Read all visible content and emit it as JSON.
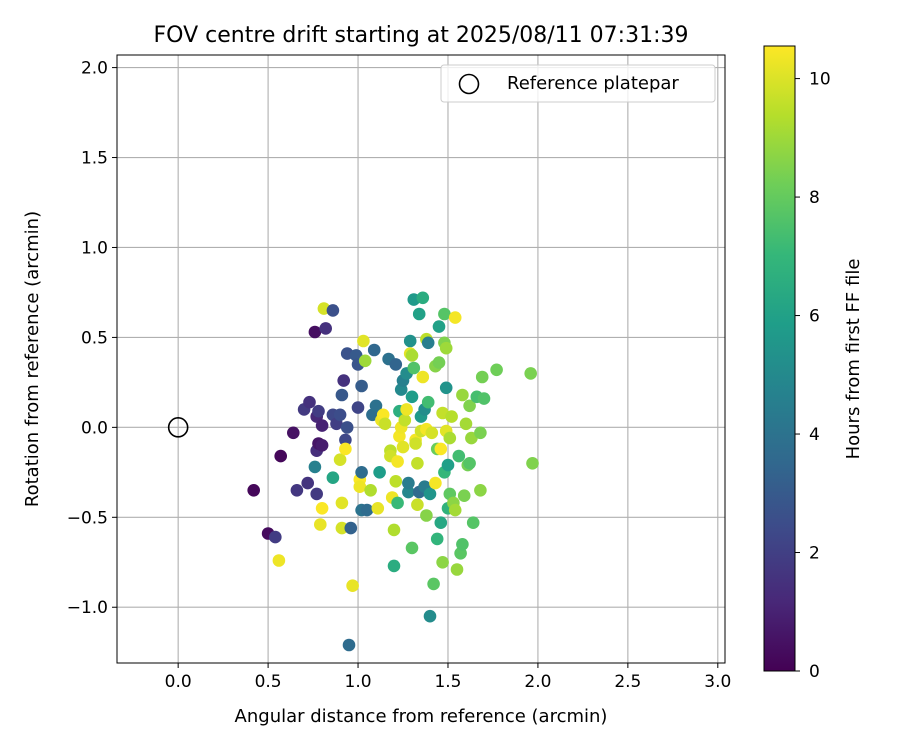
{
  "chart_data": {
    "type": "scatter",
    "title": "FOV centre drift starting at 2025/08/11 07:31:39",
    "xlabel": "Angular distance from reference (arcmin)",
    "ylabel": "Rotation from reference (arcmin)",
    "xlim": [
      -0.34,
      3.04
    ],
    "ylim": [
      -1.31,
      2.07
    ],
    "xticks": [
      0.0,
      0.5,
      1.0,
      1.5,
      2.0,
      2.5,
      3.0
    ],
    "xtick_labels": [
      "0.0",
      "0.5",
      "1.0",
      "1.5",
      "2.0",
      "2.5",
      "3.0"
    ],
    "yticks": [
      -1.0,
      -0.5,
      0.0,
      0.5,
      1.0,
      1.5,
      2.0
    ],
    "ytick_labels": [
      "−1.0",
      "−0.5",
      "0.0",
      "0.5",
      "1.0",
      "1.5",
      "2.0"
    ],
    "grid": true,
    "legend": {
      "position": "top-right",
      "entries": [
        "Reference platepar"
      ]
    },
    "reference_point": {
      "x": 0.0,
      "y": 0.0,
      "label": "Reference platepar"
    },
    "colorbar": {
      "label": "Hours from first FF file",
      "colormap": "viridis",
      "range": [
        0,
        10.55
      ],
      "ticks": [
        0,
        2,
        4,
        6,
        8,
        10
      ],
      "tick_labels": [
        "0",
        "2",
        "4",
        "6",
        "8",
        "10"
      ]
    },
    "colormap_stops": [
      "#440154",
      "#482878",
      "#3e4989",
      "#31688e",
      "#26828e",
      "#1f9e89",
      "#35b779",
      "#6ece58",
      "#b5de2b",
      "#fde725"
    ],
    "points": [
      {
        "x": 0.42,
        "y": -0.35,
        "c": 0.2
      },
      {
        "x": 0.5,
        "y": -0.59,
        "c": 0.3
      },
      {
        "x": 0.57,
        "y": -0.16,
        "c": 0.2
      },
      {
        "x": 0.54,
        "y": -0.61,
        "c": 1.9
      },
      {
        "x": 0.56,
        "y": -0.74,
        "c": 10.3
      },
      {
        "x": 0.64,
        "y": -0.03,
        "c": 0.5
      },
      {
        "x": 0.66,
        "y": -0.35,
        "c": 1.7
      },
      {
        "x": 0.7,
        "y": 0.1,
        "c": 1.8
      },
      {
        "x": 0.72,
        "y": -0.31,
        "c": 1.6
      },
      {
        "x": 0.73,
        "y": 0.14,
        "c": 1.5
      },
      {
        "x": 0.76,
        "y": 0.53,
        "c": 0.4
      },
      {
        "x": 0.77,
        "y": -0.13,
        "c": 1.4
      },
      {
        "x": 0.77,
        "y": -0.37,
        "c": 1.8
      },
      {
        "x": 0.78,
        "y": -0.09,
        "c": 0.6
      },
      {
        "x": 0.77,
        "y": 0.06,
        "c": 1.2
      },
      {
        "x": 0.78,
        "y": 0.09,
        "c": 1.9
      },
      {
        "x": 0.8,
        "y": 0.01,
        "c": 1.0
      },
      {
        "x": 0.8,
        "y": -0.1,
        "c": 0.8
      },
      {
        "x": 0.82,
        "y": 0.55,
        "c": 1.5
      },
      {
        "x": 0.81,
        "y": 0.66,
        "c": 9.9
      },
      {
        "x": 0.86,
        "y": 0.65,
        "c": 2.6
      },
      {
        "x": 0.76,
        "y": -0.22,
        "c": 4.6
      },
      {
        "x": 0.79,
        "y": -0.54,
        "c": 10.2
      },
      {
        "x": 0.8,
        "y": -0.45,
        "c": 10.5
      },
      {
        "x": 0.86,
        "y": 0.07,
        "c": 2.3
      },
      {
        "x": 0.86,
        "y": -0.28,
        "c": 6.2
      },
      {
        "x": 0.88,
        "y": 0.02,
        "c": 2.0
      },
      {
        "x": 0.9,
        "y": 0.07,
        "c": 2.5
      },
      {
        "x": 0.9,
        "y": -0.18,
        "c": 9.9
      },
      {
        "x": 0.91,
        "y": 0.18,
        "c": 2.9
      },
      {
        "x": 0.91,
        "y": -0.42,
        "c": 10.1
      },
      {
        "x": 0.91,
        "y": -0.56,
        "c": 9.9
      },
      {
        "x": 0.92,
        "y": 0.26,
        "c": 1.5
      },
      {
        "x": 0.93,
        "y": -0.07,
        "c": 2.3
      },
      {
        "x": 0.93,
        "y": -0.12,
        "c": 10.5
      },
      {
        "x": 0.94,
        "y": 0.0,
        "c": 2.6
      },
      {
        "x": 0.94,
        "y": 0.41,
        "c": 2.7
      },
      {
        "x": 0.95,
        "y": -1.21,
        "c": 3.7
      },
      {
        "x": 0.96,
        "y": -0.56,
        "c": 3.3
      },
      {
        "x": 0.97,
        "y": -0.88,
        "c": 10.2
      },
      {
        "x": 0.99,
        "y": 0.4,
        "c": 3.0
      },
      {
        "x": 1.0,
        "y": 0.35,
        "c": 2.8
      },
      {
        "x": 1.0,
        "y": 0.11,
        "c": 2.2
      },
      {
        "x": 1.01,
        "y": -0.29,
        "c": 10.5
      },
      {
        "x": 1.01,
        "y": -0.33,
        "c": 10.3
      },
      {
        "x": 1.02,
        "y": 0.23,
        "c": 3.1
      },
      {
        "x": 1.02,
        "y": -0.25,
        "c": 3.7
      },
      {
        "x": 1.02,
        "y": -0.46,
        "c": 4.0
      },
      {
        "x": 1.03,
        "y": 0.48,
        "c": 10.1
      },
      {
        "x": 1.04,
        "y": 0.37,
        "c": 9.0
      },
      {
        "x": 1.05,
        "y": -0.46,
        "c": 3.7
      },
      {
        "x": 1.07,
        "y": -0.35,
        "c": 9.3
      },
      {
        "x": 1.08,
        "y": 0.07,
        "c": 3.8
      },
      {
        "x": 1.09,
        "y": 0.43,
        "c": 3.5
      },
      {
        "x": 1.1,
        "y": 0.12,
        "c": 3.9
      },
      {
        "x": 1.11,
        "y": -0.45,
        "c": 10.2
      },
      {
        "x": 1.12,
        "y": -0.25,
        "c": 5.8
      },
      {
        "x": 1.13,
        "y": 0.04,
        "c": 10.3
      },
      {
        "x": 1.14,
        "y": 0.07,
        "c": 10.5
      },
      {
        "x": 1.15,
        "y": 0.02,
        "c": 9.7
      },
      {
        "x": 1.17,
        "y": 0.38,
        "c": 3.9
      },
      {
        "x": 1.18,
        "y": -0.13,
        "c": 9.5
      },
      {
        "x": 1.18,
        "y": -0.16,
        "c": 9.8
      },
      {
        "x": 1.19,
        "y": -0.39,
        "c": 10.3
      },
      {
        "x": 1.2,
        "y": -0.57,
        "c": 9.3
      },
      {
        "x": 1.2,
        "y": -0.77,
        "c": 6.5
      },
      {
        "x": 1.21,
        "y": 0.35,
        "c": 3.4
      },
      {
        "x": 1.21,
        "y": -0.3,
        "c": 9.5
      },
      {
        "x": 1.22,
        "y": -0.42,
        "c": 7.1
      },
      {
        "x": 1.22,
        "y": -0.19,
        "c": 10.4
      },
      {
        "x": 1.23,
        "y": 0.09,
        "c": 6.6
      },
      {
        "x": 1.23,
        "y": -0.05,
        "c": 10.4
      },
      {
        "x": 1.24,
        "y": 0.0,
        "c": 10.3
      },
      {
        "x": 1.24,
        "y": 0.21,
        "c": 5.0
      },
      {
        "x": 1.25,
        "y": 0.26,
        "c": 4.6
      },
      {
        "x": 1.25,
        "y": -0.11,
        "c": 10.1
      },
      {
        "x": 1.26,
        "y": 0.04,
        "c": 9.6
      },
      {
        "x": 1.27,
        "y": 0.1,
        "c": 10.3
      },
      {
        "x": 1.27,
        "y": 0.3,
        "c": 5.1
      },
      {
        "x": 1.28,
        "y": -0.36,
        "c": 4.9
      },
      {
        "x": 1.28,
        "y": -0.31,
        "c": 4.4
      },
      {
        "x": 1.29,
        "y": 0.48,
        "c": 5.3
      },
      {
        "x": 1.29,
        "y": 0.41,
        "c": 10.1
      },
      {
        "x": 1.3,
        "y": -0.67,
        "c": 7.8
      },
      {
        "x": 1.3,
        "y": 0.4,
        "c": 9.2
      },
      {
        "x": 1.3,
        "y": 0.17,
        "c": 5.8
      },
      {
        "x": 1.31,
        "y": 0.71,
        "c": 5.7
      },
      {
        "x": 1.31,
        "y": 0.33,
        "c": 7.6
      },
      {
        "x": 1.32,
        "y": -0.07,
        "c": 10.4
      },
      {
        "x": 1.32,
        "y": -0.09,
        "c": 9.8
      },
      {
        "x": 1.33,
        "y": -0.2,
        "c": 9.6
      },
      {
        "x": 1.33,
        "y": -0.43,
        "c": 9.7
      },
      {
        "x": 1.34,
        "y": -0.36,
        "c": 3.7
      },
      {
        "x": 1.34,
        "y": 0.63,
        "c": 6.0
      },
      {
        "x": 1.35,
        "y": 0.06,
        "c": 5.7
      },
      {
        "x": 1.35,
        "y": -0.02,
        "c": 9.8
      },
      {
        "x": 1.36,
        "y": 0.72,
        "c": 6.5
      },
      {
        "x": 1.36,
        "y": 0.28,
        "c": 10.3
      },
      {
        "x": 1.37,
        "y": 0.1,
        "c": 5.2
      },
      {
        "x": 1.37,
        "y": -0.33,
        "c": 4.4
      },
      {
        "x": 1.38,
        "y": 0.49,
        "c": 9.5
      },
      {
        "x": 1.38,
        "y": -0.01,
        "c": 10.4
      },
      {
        "x": 1.38,
        "y": -0.49,
        "c": 8.6
      },
      {
        "x": 1.39,
        "y": 0.47,
        "c": 4.5
      },
      {
        "x": 1.39,
        "y": 0.14,
        "c": 7.3
      },
      {
        "x": 1.4,
        "y": -1.05,
        "c": 5.1
      },
      {
        "x": 1.4,
        "y": -0.37,
        "c": 5.5
      },
      {
        "x": 1.41,
        "y": -0.03,
        "c": 9.9
      },
      {
        "x": 1.42,
        "y": -0.87,
        "c": 7.8
      },
      {
        "x": 1.43,
        "y": 0.34,
        "c": 8.6
      },
      {
        "x": 1.43,
        "y": -0.31,
        "c": 10.4
      },
      {
        "x": 1.44,
        "y": -0.62,
        "c": 6.9
      },
      {
        "x": 1.44,
        "y": -0.12,
        "c": 8.1
      },
      {
        "x": 1.45,
        "y": 0.56,
        "c": 6.0
      },
      {
        "x": 1.45,
        "y": 0.36,
        "c": 8.3
      },
      {
        "x": 1.46,
        "y": -0.12,
        "c": 10.5
      },
      {
        "x": 1.46,
        "y": -0.53,
        "c": 6.3
      },
      {
        "x": 1.47,
        "y": -0.75,
        "c": 8.7
      },
      {
        "x": 1.47,
        "y": 0.08,
        "c": 9.6
      },
      {
        "x": 1.48,
        "y": 0.63,
        "c": 7.7
      },
      {
        "x": 1.48,
        "y": 0.47,
        "c": 8.5
      },
      {
        "x": 1.48,
        "y": -0.25,
        "c": 7.0
      },
      {
        "x": 1.49,
        "y": 0.22,
        "c": 5.4
      },
      {
        "x": 1.49,
        "y": 0.44,
        "c": 9.0
      },
      {
        "x": 1.49,
        "y": -0.02,
        "c": 10.1
      },
      {
        "x": 1.5,
        "y": -0.45,
        "c": 6.8
      },
      {
        "x": 1.5,
        "y": -0.21,
        "c": 5.9
      },
      {
        "x": 1.51,
        "y": -0.06,
        "c": 9.2
      },
      {
        "x": 1.51,
        "y": -0.37,
        "c": 7.9
      },
      {
        "x": 1.52,
        "y": 0.06,
        "c": 9.4
      },
      {
        "x": 1.53,
        "y": -0.42,
        "c": 8.7
      },
      {
        "x": 1.54,
        "y": 0.61,
        "c": 10.4
      },
      {
        "x": 1.54,
        "y": -0.46,
        "c": 9.1
      },
      {
        "x": 1.55,
        "y": -0.79,
        "c": 8.9
      },
      {
        "x": 1.56,
        "y": -0.16,
        "c": 7.3
      },
      {
        "x": 1.57,
        "y": -0.7,
        "c": 7.8
      },
      {
        "x": 1.58,
        "y": -0.65,
        "c": 7.6
      },
      {
        "x": 1.58,
        "y": 0.18,
        "c": 8.9
      },
      {
        "x": 1.59,
        "y": -0.38,
        "c": 8.4
      },
      {
        "x": 1.6,
        "y": 0.02,
        "c": 9.1
      },
      {
        "x": 1.61,
        "y": -0.21,
        "c": 8.3
      },
      {
        "x": 1.62,
        "y": 0.12,
        "c": 8.5
      },
      {
        "x": 1.62,
        "y": -0.2,
        "c": 7.7
      },
      {
        "x": 1.63,
        "y": -0.06,
        "c": 8.9
      },
      {
        "x": 1.64,
        "y": -0.53,
        "c": 7.7
      },
      {
        "x": 1.66,
        "y": 0.17,
        "c": 7.4
      },
      {
        "x": 1.68,
        "y": -0.03,
        "c": 8.4
      },
      {
        "x": 1.68,
        "y": -0.35,
        "c": 8.7
      },
      {
        "x": 1.69,
        "y": 0.28,
        "c": 8.3
      },
      {
        "x": 1.7,
        "y": 0.16,
        "c": 7.6
      },
      {
        "x": 1.77,
        "y": 0.32,
        "c": 8.2
      },
      {
        "x": 1.96,
        "y": 0.3,
        "c": 8.4
      },
      {
        "x": 1.97,
        "y": -0.2,
        "c": 8.5
      }
    ]
  }
}
